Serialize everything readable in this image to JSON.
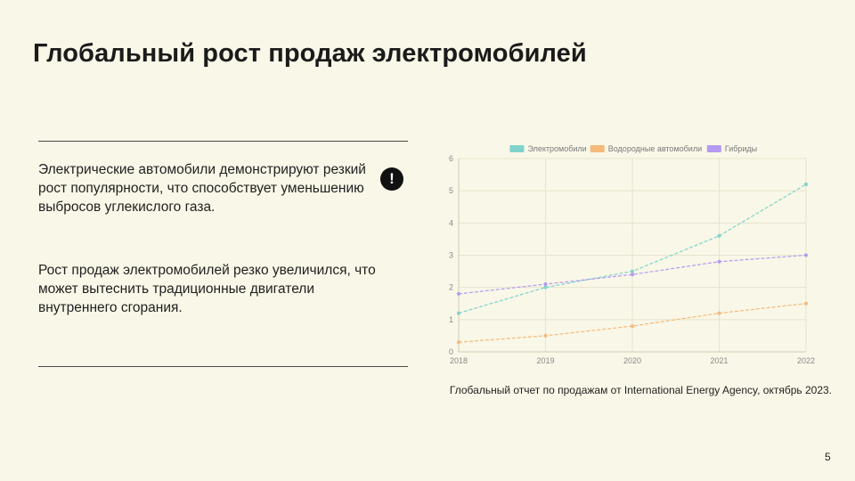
{
  "slide": {
    "title": "Глобальный рост продаж электромобилей",
    "paragraph1": "Электрические автомобили демонстрируют резкий рост популярности, что способствует уменьшению выбросов углекислого газа.",
    "paragraph2": "Рост продаж электромобилей резко увеличился, что может вытеснить традиционные двигатели внутреннего сгорания.",
    "alert_icon": "exclamation-icon",
    "alert_symbol": "!",
    "caption": "Глобальный отчет по продажам от International Energy Agency, октябрь 2023.",
    "page_number": "5"
  },
  "chart_data": {
    "type": "line",
    "categories": [
      "2018",
      "2019",
      "2020",
      "2021",
      "2022"
    ],
    "series": [
      {
        "name": "Электромобили",
        "color": "#7fd3cc",
        "values": [
          1.2,
          2.0,
          2.5,
          3.6,
          5.2
        ]
      },
      {
        "name": "Водородные автомобили",
        "color": "#f5b97a",
        "values": [
          0.3,
          0.5,
          0.8,
          1.2,
          1.5
        ]
      },
      {
        "name": "Гибриды",
        "color": "#b49af0",
        "values": [
          1.8,
          2.1,
          2.4,
          2.8,
          3.0
        ]
      }
    ],
    "ylim": [
      0,
      6
    ],
    "yticks": [
      "0",
      "1",
      "2",
      "3",
      "4",
      "5",
      "6"
    ],
    "grid": true,
    "legend_position": "top-center",
    "title": "",
    "xlabel": "",
    "ylabel": ""
  }
}
